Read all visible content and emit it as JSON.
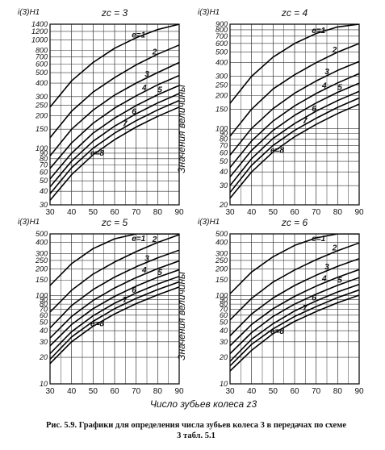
{
  "page": {
    "ylabel_shared": "Значения величины",
    "xlabel_shared": "Число зубьев колеса z3",
    "caption_line1": "Рис. 5.9. Графики для определения числа зубьев колеса 3 в передачах по схеме",
    "caption_line2": "3 табл. 5.1"
  },
  "chart_data": [
    {
      "type": "line",
      "title": "zc = 3",
      "ylabel": "i(3)H1",
      "scale_y": "log",
      "xlim": [
        30,
        90
      ],
      "ylim": [
        30,
        1400
      ],
      "x_ticks": [
        "30",
        "40",
        "50",
        "60",
        "70",
        "80",
        "90"
      ],
      "y_ticks": [
        30,
        40,
        50,
        60,
        70,
        80,
        90,
        100,
        150,
        200,
        250,
        300,
        400,
        500,
        600,
        700,
        800,
        1000,
        1200,
        1400
      ],
      "grid": true,
      "series": [
        {
          "name": "e=1",
          "x": [
            30,
            40,
            50,
            60,
            70,
            80,
            90
          ],
          "values": [
            240,
            420,
            620,
            840,
            1050,
            1250,
            1400
          ]
        },
        {
          "name": "2",
          "x": [
            30,
            40,
            50,
            60,
            70,
            80,
            90
          ],
          "values": [
            125,
            220,
            330,
            450,
            590,
            740,
            900
          ]
        },
        {
          "name": "3",
          "x": [
            30,
            40,
            50,
            60,
            70,
            80,
            90
          ],
          "values": [
            85,
            150,
            225,
            310,
            400,
            500,
            620
          ]
        },
        {
          "name": "4",
          "x": [
            30,
            40,
            50,
            60,
            70,
            80,
            90
          ],
          "values": [
            65,
            112,
            170,
            235,
            305,
            385,
            470
          ]
        },
        {
          "name": "5",
          "x": [
            30,
            40,
            50,
            60,
            70,
            80,
            90
          ],
          "values": [
            52,
            90,
            138,
            190,
            248,
            312,
            380
          ]
        },
        {
          "name": "6",
          "x": [
            30,
            40,
            50,
            60,
            70,
            80,
            90
          ],
          "values": [
            44,
            76,
            116,
            160,
            208,
            262,
            320
          ]
        },
        {
          "name": "7",
          "x": [
            30,
            40,
            50,
            60,
            70,
            80,
            90
          ],
          "values": [
            38,
            66,
            100,
            138,
            180,
            226,
            276
          ]
        },
        {
          "name": "e=8",
          "x": [
            30,
            40,
            50,
            60,
            70,
            80,
            90
          ],
          "values": [
            33,
            57,
            87,
            120,
            157,
            197,
            240
          ]
        }
      ]
    },
    {
      "type": "line",
      "title": "zc = 4",
      "ylabel": "i(3)H1",
      "scale_y": "log",
      "xlim": [
        30,
        90
      ],
      "ylim": [
        20,
        900
      ],
      "x_ticks": [
        "30",
        "40",
        "50",
        "60",
        "70",
        "80",
        "90"
      ],
      "y_ticks": [
        20,
        30,
        40,
        50,
        60,
        70,
        80,
        90,
        100,
        150,
        200,
        250,
        300,
        400,
        500,
        600,
        700,
        800,
        900
      ],
      "grid": true,
      "series": [
        {
          "name": "e=1",
          "x": [
            30,
            40,
            50,
            60,
            70,
            80,
            90
          ],
          "values": [
            170,
            300,
            450,
            600,
            740,
            850,
            900
          ]
        },
        {
          "name": "2",
          "x": [
            30,
            40,
            50,
            60,
            70,
            80,
            90
          ],
          "values": [
            85,
            150,
            230,
            310,
            400,
            500,
            600
          ]
        },
        {
          "name": "3",
          "x": [
            30,
            40,
            50,
            60,
            70,
            80,
            90
          ],
          "values": [
            57,
            100,
            152,
            210,
            272,
            340,
            410
          ]
        },
        {
          "name": "4",
          "x": [
            30,
            40,
            50,
            60,
            70,
            80,
            90
          ],
          "values": [
            44,
            77,
            117,
            161,
            209,
            261,
            318
          ]
        },
        {
          "name": "5",
          "x": [
            30,
            40,
            50,
            60,
            70,
            80,
            90
          ],
          "values": [
            36,
            63,
            96,
            132,
            171,
            214,
            260
          ]
        },
        {
          "name": "6",
          "x": [
            30,
            40,
            50,
            60,
            70,
            80,
            90
          ],
          "values": [
            30,
            53,
            81,
            111,
            144,
            180,
            219
          ]
        },
        {
          "name": "7",
          "x": [
            30,
            40,
            50,
            60,
            70,
            80,
            90
          ],
          "values": [
            26,
            46,
            70,
            96,
            124,
            156,
            190
          ]
        },
        {
          "name": "e=8",
          "x": [
            30,
            40,
            50,
            60,
            70,
            80,
            90
          ],
          "values": [
            23,
            40,
            61,
            84,
            109,
            137,
            167
          ]
        }
      ]
    },
    {
      "type": "line",
      "title": "zc = 5",
      "ylabel": "i(3)H1",
      "scale_y": "log",
      "xlim": [
        30,
        90
      ],
      "ylim": [
        10,
        500
      ],
      "x_ticks": [
        "30",
        "40",
        "50",
        "60",
        "70",
        "80",
        "90"
      ],
      "y_ticks": [
        10,
        20,
        30,
        40,
        50,
        60,
        70,
        80,
        90,
        100,
        150,
        200,
        250,
        300,
        400,
        500
      ],
      "grid": true,
      "series": [
        {
          "name": "e=1",
          "x": [
            30,
            40,
            50,
            60,
            70,
            80,
            90
          ],
          "values": [
            130,
            230,
            340,
            440,
            500,
            500,
            500
          ]
        },
        {
          "name": "2",
          "x": [
            30,
            40,
            50,
            60,
            70,
            80,
            90
          ],
          "values": [
            65,
            115,
            175,
            240,
            315,
            400,
            490
          ]
        },
        {
          "name": "3",
          "x": [
            30,
            40,
            50,
            60,
            70,
            80,
            90
          ],
          "values": [
            43,
            77,
            117,
            162,
            212,
            267,
            327
          ]
        },
        {
          "name": "4",
          "x": [
            30,
            40,
            50,
            60,
            70,
            80,
            90
          ],
          "values": [
            33,
            58,
            88,
            122,
            160,
            202,
            247
          ]
        },
        {
          "name": "5",
          "x": [
            30,
            40,
            50,
            60,
            70,
            80,
            90
          ],
          "values": [
            27,
            47,
            71,
            98,
            128,
            161,
            196
          ]
        },
        {
          "name": "6",
          "x": [
            30,
            40,
            50,
            60,
            70,
            80,
            90
          ],
          "values": [
            22,
            39,
            59,
            82,
            107,
            135,
            165
          ]
        },
        {
          "name": "7",
          "x": [
            30,
            40,
            50,
            60,
            70,
            80,
            90
          ],
          "values": [
            19,
            34,
            51,
            71,
            93,
            117,
            143
          ]
        },
        {
          "name": "e=8",
          "x": [
            30,
            40,
            50,
            60,
            70,
            80,
            90
          ],
          "values": [
            17,
            30,
            45,
            62,
            81,
            102,
            125
          ]
        }
      ]
    },
    {
      "type": "line",
      "title": "zc = 6",
      "ylabel": "i(3)H1",
      "scale_y": "log",
      "xlim": [
        30,
        90
      ],
      "ylim": [
        10,
        500
      ],
      "x_ticks": [
        "30",
        "40",
        "50",
        "60",
        "70",
        "80",
        "90"
      ],
      "y_ticks": [
        10,
        20,
        30,
        40,
        50,
        60,
        70,
        80,
        90,
        100,
        150,
        200,
        250,
        300,
        400,
        500
      ],
      "grid": true,
      "series": [
        {
          "name": "e=1",
          "x": [
            30,
            40,
            50,
            60,
            70,
            80,
            90
          ],
          "values": [
            105,
            185,
            275,
            370,
            450,
            500,
            500
          ]
        },
        {
          "name": "2",
          "x": [
            30,
            40,
            50,
            60,
            70,
            80,
            90
          ],
          "values": [
            53,
            93,
            142,
            195,
            255,
            322,
            395
          ]
        },
        {
          "name": "3",
          "x": [
            30,
            40,
            50,
            60,
            70,
            80,
            90
          ],
          "values": [
            35,
            62,
            94,
            130,
            170,
            214,
            262
          ]
        },
        {
          "name": "4",
          "x": [
            30,
            40,
            50,
            60,
            70,
            80,
            90
          ],
          "values": [
            27,
            47,
            71,
            98,
            128,
            161,
            197
          ]
        },
        {
          "name": "5",
          "x": [
            30,
            40,
            50,
            60,
            70,
            80,
            90
          ],
          "values": [
            22,
            38,
            58,
            80,
            104,
            131,
            160
          ]
        },
        {
          "name": "6",
          "x": [
            30,
            40,
            50,
            60,
            70,
            80,
            90
          ],
          "values": [
            18,
            32,
            48,
            67,
            87,
            110,
            134
          ]
        },
        {
          "name": "7",
          "x": [
            30,
            40,
            50,
            60,
            70,
            80,
            90
          ],
          "values": [
            16,
            28,
            42,
            58,
            75,
            95,
            116
          ]
        },
        {
          "name": "e=8",
          "x": [
            30,
            40,
            50,
            60,
            70,
            80,
            90
          ],
          "values": [
            14,
            24,
            37,
            51,
            66,
            83,
            101
          ]
        }
      ]
    }
  ]
}
